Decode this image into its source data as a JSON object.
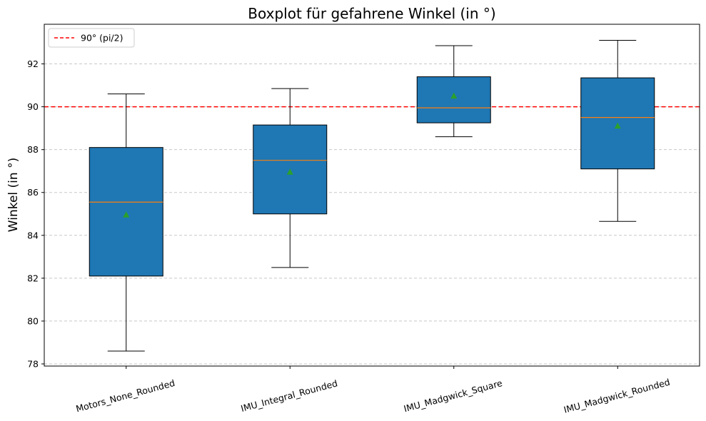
{
  "chart_data": {
    "type": "boxplot",
    "title": "Boxplot für gefahrene Winkel (in °)",
    "xlabel": "",
    "ylabel": "Winkel (in °)",
    "ylim": [
      77.9,
      93.85
    ],
    "yticks": [
      78,
      80,
      82,
      84,
      86,
      88,
      90,
      92
    ],
    "grid": "horizontal dashed",
    "legend_position": "top-left",
    "colors": {
      "box_fill": "#1f77b4",
      "median": "#ff7f0e",
      "mean_marker": "#2ca02c",
      "reference_line": "#ff0000",
      "grid": "#c8c8c8"
    },
    "categories": [
      "Motors_None_Rounded",
      "IMU_Integral_Rounded",
      "IMU_Madgwick_Square",
      "IMU_Madgwick_Rounded"
    ],
    "boxes": [
      {
        "whisker_low": 78.6,
        "q1": 82.1,
        "median": 85.55,
        "q3": 88.1,
        "whisker_high": 90.6,
        "mean": 84.95
      },
      {
        "whisker_low": 82.5,
        "q1": 85.0,
        "median": 87.5,
        "q3": 89.15,
        "whisker_high": 90.85,
        "mean": 86.95
      },
      {
        "whisker_low": 88.6,
        "q1": 89.25,
        "median": 89.95,
        "q3": 91.4,
        "whisker_high": 92.85,
        "mean": 90.5
      },
      {
        "whisker_low": 84.65,
        "q1": 87.1,
        "median": 89.5,
        "q3": 91.35,
        "whisker_high": 93.1,
        "mean": 89.1
      }
    ],
    "reference_line": {
      "value": 90,
      "label": "90° (pi/2)"
    }
  }
}
